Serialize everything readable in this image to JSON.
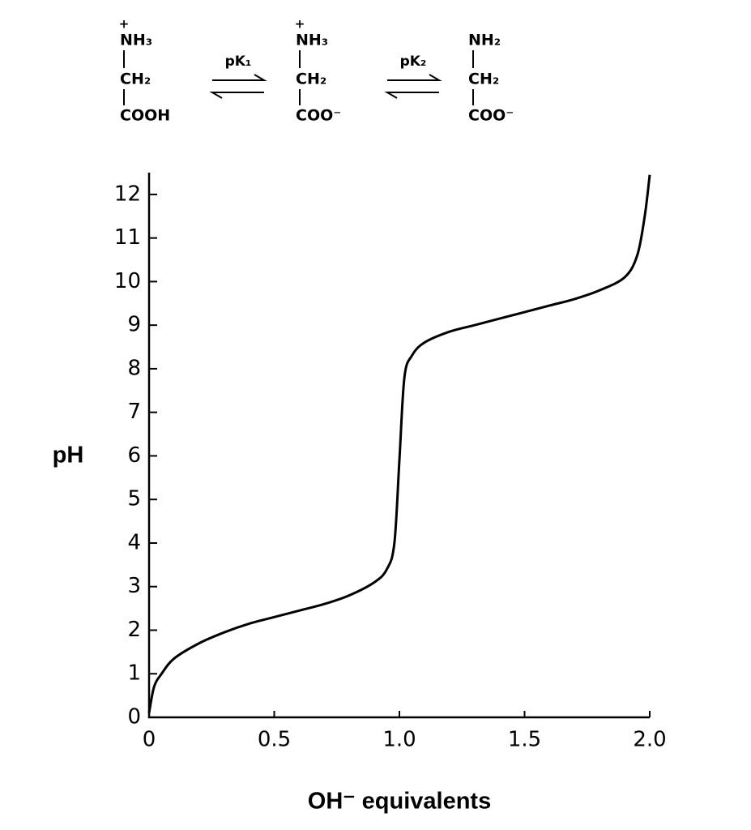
{
  "scheme": {
    "species": [
      {
        "charge": "+",
        "amine": "NH₃",
        "middle": "CH₂",
        "carboxyl": "COOH"
      },
      {
        "charge": "+",
        "amine": "NH₃",
        "middle": "CH₂",
        "carboxyl": "COO⁻"
      },
      {
        "amine": "NH₂",
        "middle": "CH₂",
        "carboxyl": "COO⁻"
      }
    ],
    "arrows": [
      "pK₁",
      "pK₂"
    ]
  },
  "chart_data": {
    "type": "line",
    "x_label": "OH⁻ equivalents",
    "y_label": "pH",
    "x": [
      0,
      0.02,
      0.05,
      0.1,
      0.2,
      0.3,
      0.4,
      0.5,
      0.6,
      0.7,
      0.8,
      0.9,
      0.95,
      0.98,
      1.0,
      1.02,
      1.05,
      1.1,
      1.2,
      1.3,
      1.4,
      1.5,
      1.6,
      1.7,
      1.8,
      1.9,
      1.95,
      1.98,
      2.0
    ],
    "series": [
      {
        "color": "#000000",
        "values": [
          0.1,
          0.7,
          1.0,
          1.35,
          1.7,
          1.95,
          2.15,
          2.3,
          2.45,
          2.6,
          2.8,
          3.1,
          3.4,
          4.0,
          5.9,
          7.8,
          8.3,
          8.6,
          8.85,
          9.0,
          9.15,
          9.3,
          9.45,
          9.6,
          9.8,
          10.1,
          10.6,
          11.5,
          12.45
        ]
      }
    ],
    "xlim": [
      0,
      2
    ],
    "ylim": [
      0,
      12.5
    ],
    "xticks": [
      0,
      0.5,
      {
        "value": 1,
        "label": "1.0"
      },
      1.5,
      {
        "value": 2,
        "label": "2.0"
      }
    ],
    "yticks": [
      0,
      1,
      2,
      3,
      4,
      5,
      6,
      7,
      8,
      9,
      10,
      11,
      12
    ]
  }
}
